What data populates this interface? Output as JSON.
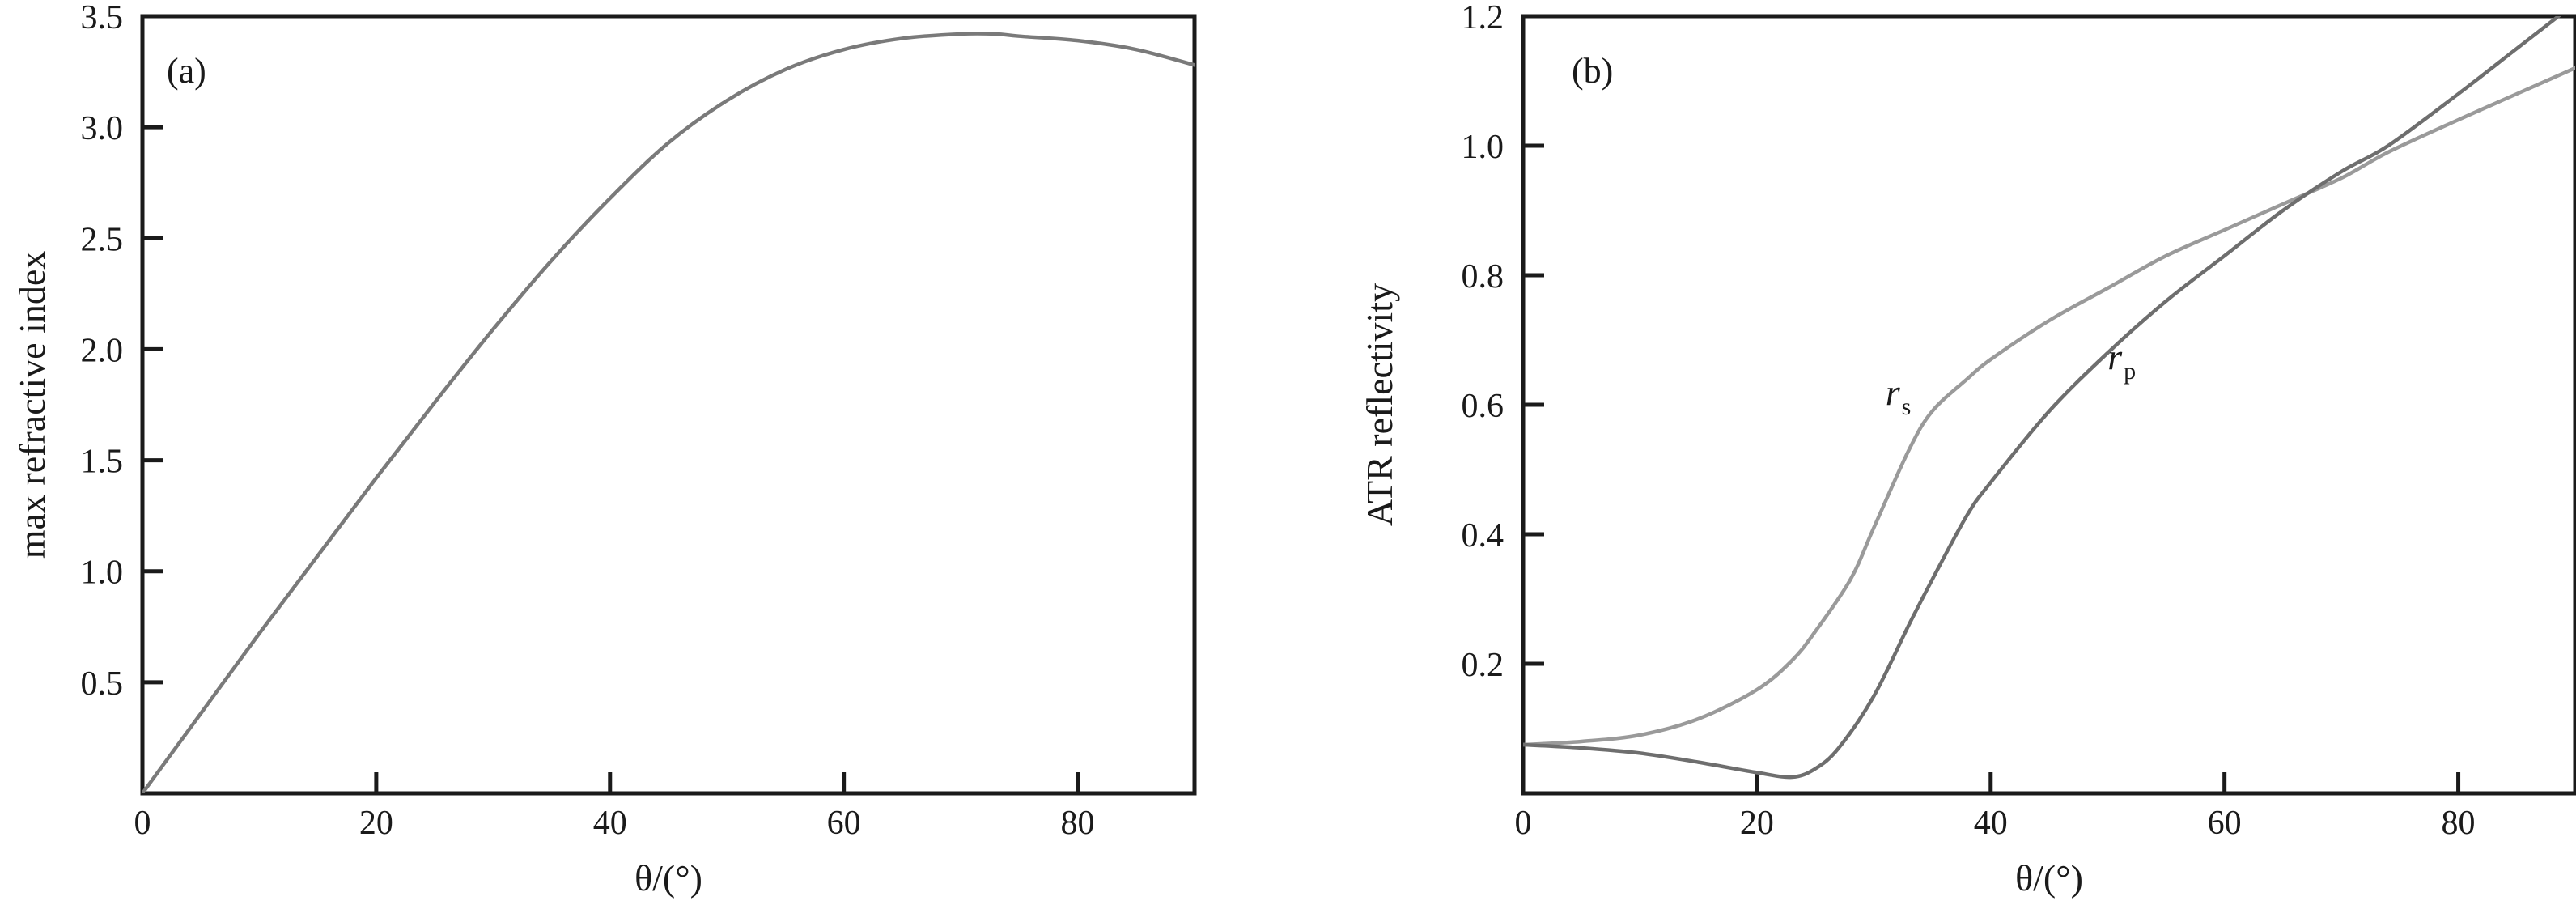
{
  "chart_data": [
    {
      "type": "line",
      "panel_label": "(a)",
      "xlabel": "θ/(°)",
      "ylabel": "max refractive index",
      "xlim": [
        0,
        90
      ],
      "ylim": [
        0,
        3.5
      ],
      "xticks": [
        0,
        20,
        40,
        60,
        80
      ],
      "yticks": [
        0.5,
        1.0,
        1.5,
        2.0,
        2.5,
        3.0,
        3.5
      ],
      "ytick_labels": [
        "0.5",
        "1.0",
        "1.5",
        "2.0",
        "2.5",
        "3.0",
        "3.5"
      ],
      "colors": {
        "curve": "#7a7a7a",
        "axes": "#1a1a1a"
      },
      "series": [
        {
          "x": [
            0,
            5,
            10,
            15,
            20,
            25,
            30,
            35,
            40,
            45,
            50,
            55,
            60,
            65,
            70,
            73,
            75,
            80,
            85,
            90
          ],
          "values": [
            0.0,
            0.36,
            0.72,
            1.07,
            1.42,
            1.76,
            2.09,
            2.4,
            2.68,
            2.93,
            3.12,
            3.26,
            3.35,
            3.4,
            3.42,
            3.42,
            3.41,
            3.39,
            3.35,
            3.28
          ]
        }
      ]
    },
    {
      "type": "line",
      "panel_label": "(b)",
      "xlabel": "θ/(°)",
      "ylabel": "ATR reflectivity",
      "xlim": [
        0,
        90
      ],
      "ylim": [
        0,
        1.2
      ],
      "xticks": [
        0,
        20,
        40,
        60,
        80
      ],
      "yticks": [
        0.2,
        0.4,
        0.6,
        0.8,
        1.0,
        1.2
      ],
      "ytick_labels": [
        "0.2",
        "0.4",
        "0.6",
        "0.8",
        "1.0",
        "1.2"
      ],
      "colors": {
        "r_s": "#9a9a9a",
        "r_p": "#6e6e6e",
        "axes": "#1a1a1a"
      },
      "series": [
        {
          "key": "r_s",
          "label_main": "r",
          "label_sub": "s",
          "label_at": [
            31,
            0.6
          ],
          "x": [
            0,
            5,
            10,
            15,
            20,
            23,
            25,
            28,
            30,
            33,
            35,
            38,
            40,
            45,
            50,
            55,
            60,
            65,
            70,
            74,
            80,
            85,
            90
          ],
          "values": [
            0.075,
            0.08,
            0.09,
            0.115,
            0.16,
            0.205,
            0.25,
            0.33,
            0.41,
            0.53,
            0.59,
            0.64,
            0.67,
            0.73,
            0.78,
            0.83,
            0.87,
            0.91,
            0.95,
            0.99,
            1.04,
            1.08,
            1.12
          ]
        },
        {
          "key": "r_p",
          "label_main": "r",
          "label_sub": "p",
          "label_at": [
            50,
            0.655
          ],
          "x": [
            0,
            5,
            10,
            15,
            20,
            23,
            25,
            27,
            30,
            33,
            35,
            38,
            40,
            45,
            50,
            55,
            60,
            65,
            70,
            74,
            80,
            85,
            90
          ],
          "values": [
            0.075,
            0.07,
            0.062,
            0.048,
            0.032,
            0.025,
            0.038,
            0.07,
            0.15,
            0.26,
            0.33,
            0.43,
            0.48,
            0.59,
            0.68,
            0.76,
            0.83,
            0.9,
            0.96,
            1.0,
            1.08,
            1.15,
            1.22
          ]
        }
      ]
    }
  ]
}
